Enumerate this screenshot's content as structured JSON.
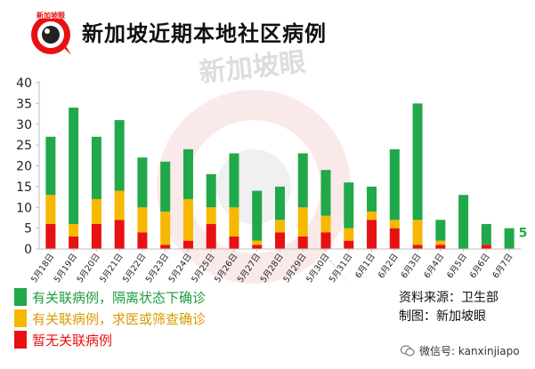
{
  "title": "新加坡近期本地社区病例",
  "watermark": "新加坡眼",
  "source_line": "资料来源：卫生部",
  "made_by_line": "制图：新加坡眼",
  "footer_text": "微信号: kanxinjiapo",
  "colors": {
    "unlinked": "#e81111",
    "linked_surveillance": "#f6b800",
    "isolated": "#21a84a",
    "axis": "#bfbfbf"
  },
  "chart_data": {
    "type": "bar",
    "stacked": true,
    "title": "新加坡近期本地社区病例",
    "xlabel": "",
    "ylabel": "",
    "ylim": [
      0,
      40
    ],
    "yticks": [
      0,
      5,
      10,
      15,
      20,
      25,
      30,
      35,
      40
    ],
    "grid": false,
    "legend": "bottom-left",
    "categories": [
      "5月18日",
      "5月19日",
      "5月20日",
      "5月21日",
      "5月22日",
      "5月23日",
      "5月24日",
      "5月25日",
      "5月26日",
      "5月27日",
      "5月28日",
      "5月29日",
      "5月30日",
      "5月31日",
      "6月1日",
      "6月2日",
      "6月3日",
      "6月4日",
      "6月5日",
      "6月6日",
      "6月7日"
    ],
    "series": [
      {
        "name": "暂无关联病例",
        "color": "#e81111",
        "values": [
          6,
          3,
          6,
          7,
          4,
          1,
          2,
          6,
          3,
          1,
          4,
          3,
          4,
          2,
          7,
          5,
          1,
          1,
          0,
          1,
          0
        ]
      },
      {
        "name": "有关联病例，求医或筛查确诊",
        "color": "#f6b800",
        "values": [
          7,
          3,
          6,
          7,
          6,
          8,
          10,
          4,
          7,
          1,
          3,
          7,
          4,
          3,
          2,
          2,
          6,
          1,
          0,
          0,
          0
        ]
      },
      {
        "name": "有关联病例，隔离状态下确诊",
        "color": "#21a84a",
        "values": [
          14,
          28,
          15,
          17,
          12,
          12,
          12,
          8,
          13,
          12,
          8,
          13,
          11,
          11,
          6,
          17,
          28,
          5,
          13,
          5,
          5
        ]
      }
    ],
    "totals": [
      27,
      34,
      27,
      31,
      22,
      21,
      24,
      18,
      23,
      14,
      15,
      23,
      19,
      16,
      15,
      24,
      35,
      7,
      13,
      6,
      5
    ],
    "data_labels": [
      {
        "category": "6月7日",
        "text": "5"
      }
    ]
  },
  "legend_items": [
    {
      "label": "有关联病例，隔离状态下确诊",
      "color": "#21a84a",
      "text_color": "#1d9a42"
    },
    {
      "label": "有关联病例，求医或筛查确诊",
      "color": "#f6b800",
      "text_color": "#d99a00"
    },
    {
      "label": "暂无关联病例",
      "color": "#e81111",
      "text_color": "#e81111"
    }
  ]
}
